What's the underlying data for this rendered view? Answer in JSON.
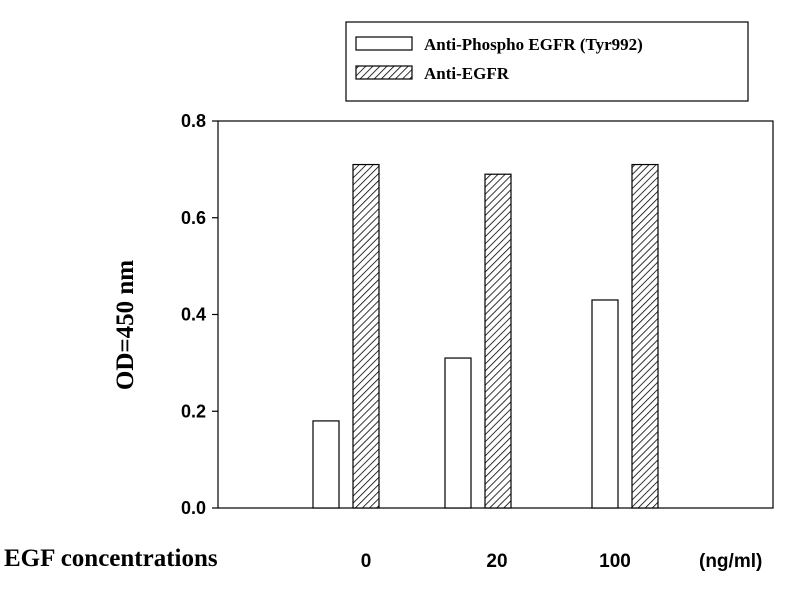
{
  "chart_data": {
    "type": "bar",
    "categories": [
      "0",
      "20",
      "100"
    ],
    "series": [
      {
        "name": "Anti-Phospho EGFR (Tyr992)",
        "values": [
          0.18,
          0.31,
          0.43
        ],
        "fill": "white",
        "color": "#ffffff"
      },
      {
        "name": "Anti-EGFR",
        "values": [
          0.71,
          0.69,
          0.71
        ],
        "fill": "hatched",
        "color": "#000000"
      }
    ],
    "xlabel": "EGF concentrations",
    "x_unit": "(ng/ml)",
    "ylabel": "OD=450 nm",
    "ylim": [
      0,
      0.8
    ],
    "yticks": [
      "0.0",
      "0.2",
      "0.4",
      "0.6",
      "0.8"
    ],
    "grid": false,
    "legend_position": "top-right"
  }
}
